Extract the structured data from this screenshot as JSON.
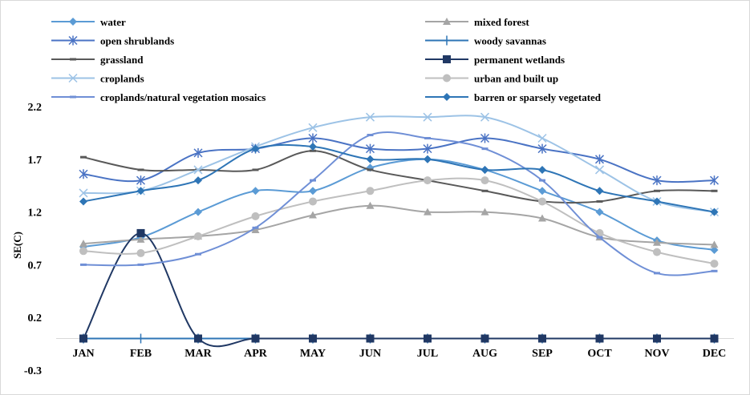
{
  "chart_data": {
    "type": "line",
    "title": "",
    "xlabel": "",
    "ylabel": "SE(C)",
    "categories": [
      "JAN",
      "FEB",
      "MAR",
      "APR",
      "MAY",
      "JUN",
      "JUL",
      "AUG",
      "SEP",
      "OCT",
      "NOV",
      "DEC"
    ],
    "ylim": [
      -0.3,
      2.2
    ],
    "yticks": [
      2.2,
      1.7,
      1.2,
      0.7,
      0.2,
      -0.3
    ],
    "grid": false,
    "legend_position": "top",
    "series": [
      {
        "name": "water",
        "color": "#5b9bd5",
        "marker": "diamond",
        "values": [
          0.87,
          0.96,
          1.2,
          1.4,
          1.4,
          1.62,
          1.7,
          1.6,
          1.4,
          1.2,
          0.93,
          0.84
        ]
      },
      {
        "name": "mixed forest",
        "color": "#a5a5a5",
        "marker": "triangle",
        "values": [
          0.9,
          0.94,
          0.97,
          1.03,
          1.17,
          1.26,
          1.2,
          1.2,
          1.14,
          0.96,
          0.91,
          0.89
        ]
      },
      {
        "name": "open shrublands",
        "color": "#4a73c4",
        "marker": "star",
        "values": [
          1.56,
          1.5,
          1.76,
          1.8,
          1.9,
          1.8,
          1.8,
          1.9,
          1.8,
          1.7,
          1.5,
          1.5
        ]
      },
      {
        "name": "woody savannas",
        "color": "#2e75b6",
        "marker": "plus",
        "values": [
          0,
          0,
          0,
          0,
          0,
          0,
          0,
          0,
          0,
          0,
          0,
          0
        ]
      },
      {
        "name": "grassland",
        "color": "#595959",
        "marker": "dash",
        "values": [
          1.72,
          1.6,
          1.6,
          1.6,
          1.78,
          1.6,
          1.5,
          1.4,
          1.3,
          1.3,
          1.4,
          1.4
        ]
      },
      {
        "name": "permanent wetlands",
        "color": "#203864",
        "marker": "square",
        "values": [
          0,
          1.0,
          0,
          0,
          0,
          0,
          0,
          0,
          0,
          0,
          0,
          0
        ]
      },
      {
        "name": "croplands",
        "color": "#9dc3e6",
        "marker": "x",
        "values": [
          1.38,
          1.4,
          1.6,
          1.82,
          2.0,
          2.1,
          2.1,
          2.1,
          1.9,
          1.6,
          1.3,
          1.2
        ]
      },
      {
        "name": "urban and built up",
        "color": "#bfbfbf",
        "marker": "circle",
        "values": [
          0.83,
          0.81,
          0.97,
          1.16,
          1.3,
          1.4,
          1.5,
          1.5,
          1.3,
          1.0,
          0.82,
          0.71
        ]
      },
      {
        "name": "croplands/natural vegetation mosaics",
        "color": "#6f8fd6",
        "marker": "dash",
        "values": [
          0.7,
          0.7,
          0.8,
          1.05,
          1.5,
          1.93,
          1.9,
          1.8,
          1.5,
          0.96,
          0.62,
          0.64
        ]
      },
      {
        "name": "barren or sparsely vegetated",
        "color": "#2e75b6",
        "marker": "diamond",
        "values": [
          1.3,
          1.4,
          1.5,
          1.8,
          1.82,
          1.7,
          1.7,
          1.6,
          1.6,
          1.4,
          1.3,
          1.2
        ]
      }
    ]
  }
}
